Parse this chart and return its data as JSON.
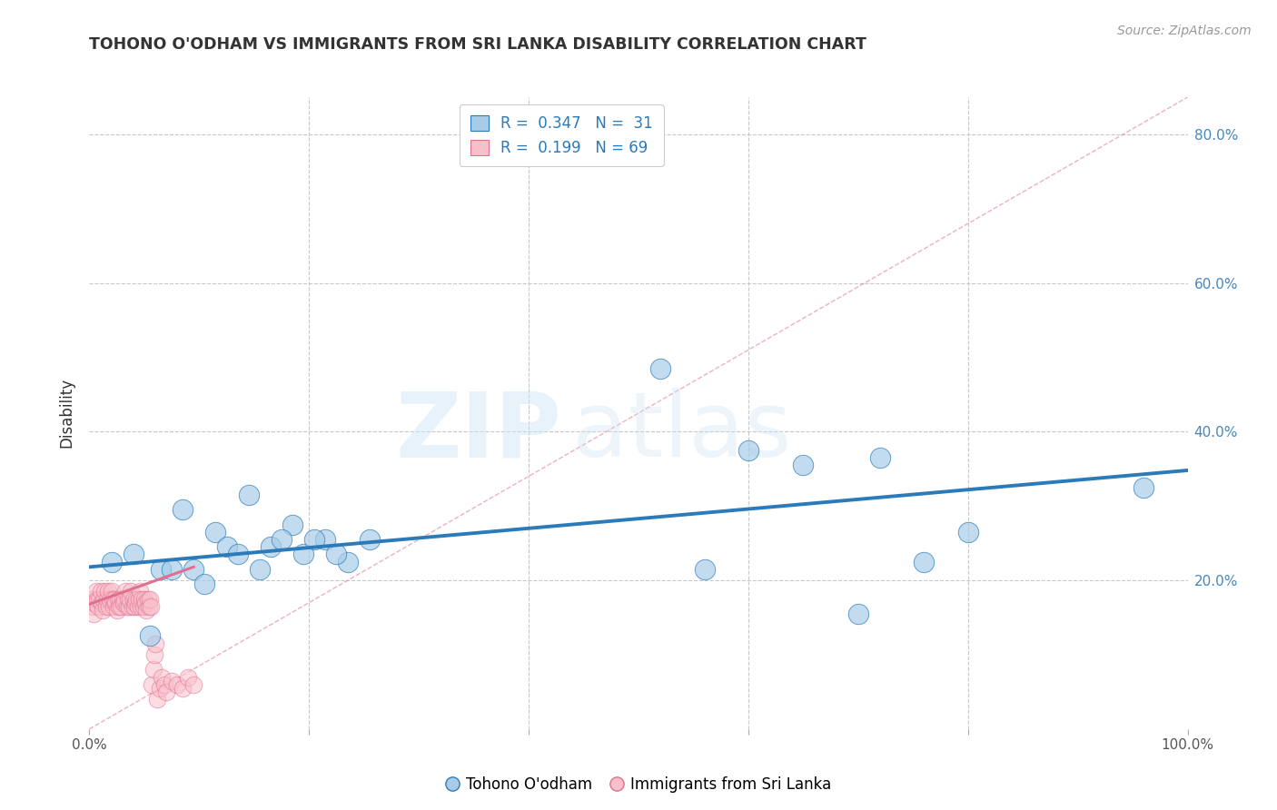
{
  "title": "TOHONO O'ODHAM VS IMMIGRANTS FROM SRI LANKA DISABILITY CORRELATION CHART",
  "source": "Source: ZipAtlas.com",
  "ylabel": "Disability",
  "xlim": [
    0.0,
    1.0
  ],
  "ylim": [
    0.0,
    0.85
  ],
  "yticks": [
    0.0,
    0.2,
    0.4,
    0.6,
    0.8
  ],
  "ytick_labels": [
    "",
    "20.0%",
    "40.0%",
    "60.0%",
    "80.0%"
  ],
  "blue_color": "#a8cce8",
  "pink_color": "#f9c0cb",
  "line_blue_color": "#2b7bba",
  "line_pink_color": "#e07090",
  "blue_points_x": [
    0.085,
    0.115,
    0.125,
    0.145,
    0.165,
    0.185,
    0.195,
    0.215,
    0.235,
    0.255,
    0.02,
    0.04,
    0.055,
    0.065,
    0.075,
    0.095,
    0.105,
    0.135,
    0.155,
    0.175,
    0.205,
    0.225,
    0.52,
    0.56,
    0.6,
    0.65,
    0.7,
    0.72,
    0.76,
    0.8,
    0.96
  ],
  "blue_points_y": [
    0.295,
    0.265,
    0.245,
    0.315,
    0.245,
    0.275,
    0.235,
    0.255,
    0.225,
    0.255,
    0.225,
    0.235,
    0.125,
    0.215,
    0.215,
    0.215,
    0.195,
    0.235,
    0.215,
    0.255,
    0.255,
    0.235,
    0.485,
    0.215,
    0.375,
    0.355,
    0.155,
    0.365,
    0.225,
    0.265,
    0.325
  ],
  "pink_points_x": [
    0.002,
    0.003,
    0.004,
    0.005,
    0.006,
    0.007,
    0.008,
    0.009,
    0.01,
    0.011,
    0.012,
    0.013,
    0.014,
    0.015,
    0.016,
    0.017,
    0.018,
    0.019,
    0.02,
    0.021,
    0.022,
    0.023,
    0.024,
    0.025,
    0.026,
    0.027,
    0.028,
    0.029,
    0.03,
    0.031,
    0.032,
    0.033,
    0.034,
    0.035,
    0.036,
    0.037,
    0.038,
    0.039,
    0.04,
    0.041,
    0.042,
    0.043,
    0.044,
    0.045,
    0.046,
    0.047,
    0.048,
    0.049,
    0.05,
    0.051,
    0.052,
    0.053,
    0.054,
    0.055,
    0.056,
    0.057,
    0.058,
    0.059,
    0.06,
    0.062,
    0.064,
    0.066,
    0.068,
    0.07,
    0.075,
    0.08,
    0.085,
    0.09,
    0.095
  ],
  "pink_points_y": [
    0.175,
    0.165,
    0.155,
    0.17,
    0.185,
    0.175,
    0.165,
    0.175,
    0.185,
    0.17,
    0.16,
    0.175,
    0.185,
    0.165,
    0.175,
    0.185,
    0.165,
    0.175,
    0.185,
    0.175,
    0.165,
    0.175,
    0.17,
    0.16,
    0.175,
    0.165,
    0.175,
    0.165,
    0.175,
    0.17,
    0.175,
    0.185,
    0.165,
    0.175,
    0.165,
    0.175,
    0.185,
    0.165,
    0.175,
    0.165,
    0.17,
    0.175,
    0.165,
    0.175,
    0.185,
    0.165,
    0.175,
    0.165,
    0.175,
    0.17,
    0.16,
    0.175,
    0.165,
    0.175,
    0.165,
    0.06,
    0.08,
    0.1,
    0.115,
    0.04,
    0.055,
    0.07,
    0.06,
    0.05,
    0.065,
    0.06,
    0.055,
    0.07,
    0.06
  ],
  "blue_line_x": [
    0.0,
    1.0
  ],
  "blue_line_y": [
    0.218,
    0.348
  ],
  "pink_line_x": [
    0.0,
    0.095
  ],
  "pink_line_y": [
    0.168,
    0.218
  ],
  "diag_line_x": [
    0.0,
    1.0
  ],
  "diag_line_y": [
    0.0,
    0.85
  ],
  "grid_color": "#c8c8c8",
  "background_color": "#ffffff",
  "title_color": "#333333",
  "source_color": "#999999"
}
